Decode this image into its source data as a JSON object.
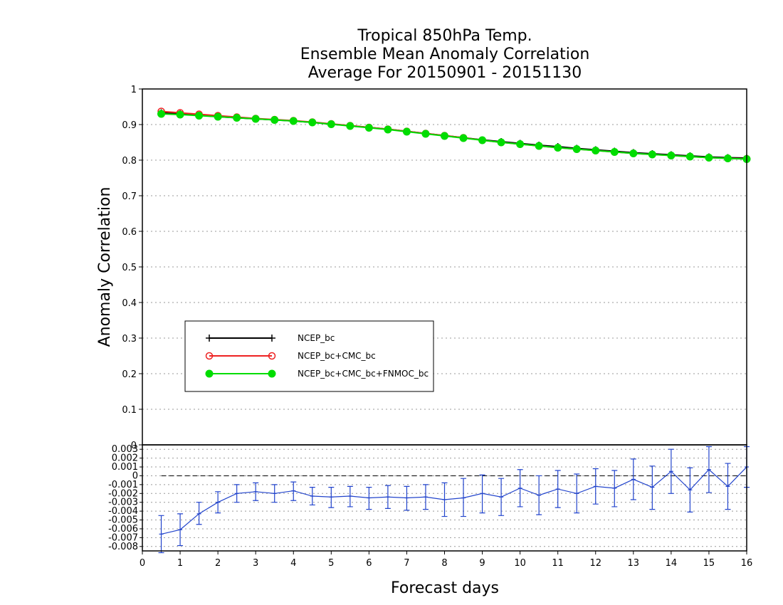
{
  "chart_data": {
    "type": "line",
    "title": [
      "Tropical 850hPa Temp.",
      "Ensemble Mean Anomaly Correlation",
      "Average For 20150901 - 20151130"
    ],
    "xlabel": "Forecast days",
    "ylabel": "Anomaly Correlation",
    "xlim": [
      0,
      16
    ],
    "x_ticks": [
      "0",
      "1",
      "2",
      "3",
      "4",
      "5",
      "6",
      "7",
      "8",
      "9",
      "10",
      "11",
      "12",
      "13",
      "14",
      "15",
      "16"
    ],
    "ylim": [
      0,
      1
    ],
    "y_ticks": [
      "0",
      "0.1",
      "0.2",
      "0.3",
      "0.4",
      "0.5",
      "0.6",
      "0.7",
      "0.8",
      "0.9",
      "1"
    ],
    "grid": true,
    "legend_position": "center-left",
    "x": [
      0.5,
      1,
      1.5,
      2,
      2.5,
      3,
      3.5,
      4,
      4.5,
      5,
      5.5,
      6,
      6.5,
      7,
      7.5,
      8,
      8.5,
      9,
      9.5,
      10,
      10.5,
      11,
      11.5,
      12,
      12.5,
      13,
      13.5,
      14,
      14.5,
      15,
      15.5,
      16
    ],
    "series": [
      {
        "name": "NCEP_bc",
        "color": "#000000",
        "marker": "plus",
        "values": [
          0.933,
          0.93,
          0.926,
          0.922,
          0.919,
          0.916,
          0.913,
          0.91,
          0.906,
          0.901,
          0.897,
          0.892,
          0.887,
          0.881,
          0.875,
          0.869,
          0.863,
          0.857,
          0.852,
          0.847,
          0.842,
          0.838,
          0.833,
          0.829,
          0.825,
          0.821,
          0.818,
          0.815,
          0.812,
          0.809,
          0.807,
          0.806
        ]
      },
      {
        "name": "NCEP_bc+CMC_bc",
        "color": "#ee2222",
        "marker": "open-circle",
        "values": [
          0.937,
          0.933,
          0.929,
          0.925,
          0.921,
          0.917,
          0.914,
          0.911,
          0.907,
          0.902,
          0.897,
          0.892,
          0.887,
          0.881,
          0.875,
          0.869,
          0.863,
          0.856,
          0.85,
          0.845,
          0.84,
          0.835,
          0.831,
          0.827,
          0.823,
          0.819,
          0.816,
          0.813,
          0.81,
          0.807,
          0.805,
          0.804
        ]
      },
      {
        "name": "NCEP_bc+CMC_bc+FNMOC_bc",
        "color": "#00dd00",
        "marker": "filled-circle",
        "values": [
          0.93,
          0.928,
          0.925,
          0.922,
          0.919,
          0.916,
          0.913,
          0.91,
          0.906,
          0.901,
          0.896,
          0.891,
          0.886,
          0.88,
          0.874,
          0.868,
          0.862,
          0.856,
          0.85,
          0.845,
          0.84,
          0.835,
          0.831,
          0.827,
          0.823,
          0.819,
          0.816,
          0.813,
          0.81,
          0.807,
          0.805,
          0.803
        ]
      }
    ],
    "difference_panel": {
      "type": "line-errorbar",
      "color": "#2244cc",
      "ylim": [
        -0.0085,
        0.0035
      ],
      "y_ticks": [
        "0.003",
        "0.002",
        "0.001",
        "0",
        "-0.001",
        "-0.002",
        "-0.003",
        "-0.004",
        "-0.005",
        "-0.006",
        "-0.007",
        "-0.008"
      ],
      "x": [
        0.5,
        1,
        1.5,
        2,
        2.5,
        3,
        3.5,
        4,
        4.5,
        5,
        5.5,
        6,
        6.5,
        7,
        7.5,
        8,
        8.5,
        9,
        9.5,
        10,
        10.5,
        11,
        11.5,
        12,
        12.5,
        13,
        13.5,
        14,
        14.5,
        15,
        15.5,
        16
      ],
      "values": [
        -0.0066,
        -0.0061,
        -0.0043,
        -0.003,
        -0.002,
        -0.0018,
        -0.002,
        -0.0017,
        -0.0023,
        -0.0024,
        -0.0023,
        -0.0025,
        -0.0024,
        -0.0025,
        -0.0024,
        -0.0027,
        -0.0025,
        -0.002,
        -0.0024,
        -0.0014,
        -0.0022,
        -0.0015,
        -0.002,
        -0.0012,
        -0.0014,
        -0.0004,
        -0.0013,
        0.0005,
        -0.0016,
        0.0007,
        -0.0012,
        0.001
      ],
      "error_low": [
        -0.0087,
        -0.0079,
        -0.0055,
        -0.0042,
        -0.003,
        -0.0028,
        -0.003,
        -0.0028,
        -0.0033,
        -0.0036,
        -0.0035,
        -0.0038,
        -0.0037,
        -0.0039,
        -0.0038,
        -0.0046,
        -0.0046,
        -0.0042,
        -0.0045,
        -0.0035,
        -0.0044,
        -0.0036,
        -0.0042,
        -0.0032,
        -0.0035,
        -0.0027,
        -0.0038,
        -0.002,
        -0.0041,
        -0.0019,
        -0.0038,
        -0.0013
      ],
      "error_high": [
        -0.0045,
        -0.0043,
        -0.003,
        -0.0018,
        -0.001,
        -0.0008,
        -0.001,
        -0.0007,
        -0.0013,
        -0.0013,
        -0.0012,
        -0.0013,
        -0.0011,
        -0.0012,
        -0.001,
        -0.0008,
        -0.0003,
        0.0001,
        -0.0003,
        0.0007,
        0.0,
        0.0006,
        0.0002,
        0.0008,
        0.0006,
        0.0019,
        0.0011,
        0.003,
        0.0009,
        0.0033,
        0.0014,
        0.0033
      ]
    }
  }
}
